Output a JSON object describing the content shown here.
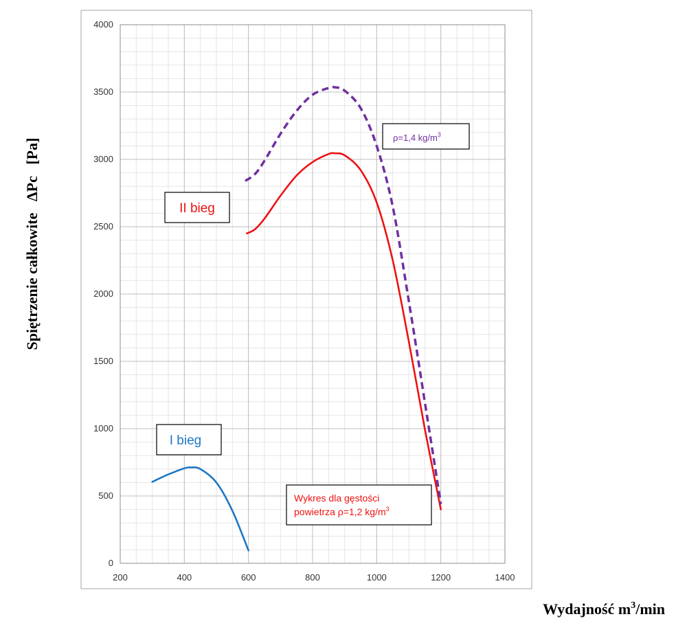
{
  "chart_data": {
    "type": "line",
    "xlim": [
      200,
      1400
    ],
    "ylim": [
      0,
      4000
    ],
    "x_ticks": [
      200,
      400,
      600,
      800,
      1000,
      1200,
      1400
    ],
    "y_ticks": [
      0,
      500,
      1000,
      1500,
      2000,
      2500,
      3000,
      3500,
      4000
    ],
    "x_minor_step": 50,
    "y_minor_step": 100,
    "grid": true,
    "ylabel": "Spiętrzenie całkowite   ΔPc   [Pa]",
    "xlabel": "Wydajność m",
    "xlabel_sup": "3",
    "xlabel_suffix": "/min",
    "series": [
      {
        "color": "#1f77c4",
        "style": "solid",
        "points": [
          [
            300,
            605
          ],
          [
            350,
            660
          ],
          [
            400,
            705
          ],
          [
            420,
            712
          ],
          [
            450,
            700
          ],
          [
            500,
            600
          ],
          [
            550,
            390
          ],
          [
            600,
            95
          ]
        ]
      },
      {
        "color": "#ee1111",
        "style": "solid",
        "points": [
          [
            595,
            2450
          ],
          [
            620,
            2480
          ],
          [
            650,
            2560
          ],
          [
            700,
            2730
          ],
          [
            750,
            2880
          ],
          [
            800,
            2980
          ],
          [
            850,
            3040
          ],
          [
            870,
            3045
          ],
          [
            900,
            3030
          ],
          [
            950,
            2920
          ],
          [
            1000,
            2680
          ],
          [
            1050,
            2250
          ],
          [
            1100,
            1650
          ],
          [
            1150,
            1000
          ],
          [
            1200,
            400
          ]
        ]
      },
      {
        "color": "#7030a0",
        "style": "dashed",
        "points": [
          [
            590,
            2840
          ],
          [
            620,
            2890
          ],
          [
            650,
            2990
          ],
          [
            700,
            3190
          ],
          [
            750,
            3360
          ],
          [
            800,
            3480
          ],
          [
            850,
            3530
          ],
          [
            870,
            3535
          ],
          [
            900,
            3510
          ],
          [
            950,
            3380
          ],
          [
            1000,
            3100
          ],
          [
            1050,
            2650
          ],
          [
            1100,
            1950
          ],
          [
            1150,
            1200
          ],
          [
            1200,
            440
          ]
        ]
      }
    ],
    "annotations": {
      "gear2": {
        "text": "II bieg",
        "color": "#ee1111"
      },
      "gear1": {
        "text": "I bieg",
        "color": "#1f77c4"
      },
      "rho14": {
        "text": "ρ=1,4 kg/m",
        "sup": "3",
        "color": "#7030a0"
      },
      "rho12": {
        "line1": "Wykres dla gęstości",
        "line2": "powietrza ρ=1,2 kg/m",
        "sup": "3",
        "color": "#ee1111"
      }
    }
  }
}
